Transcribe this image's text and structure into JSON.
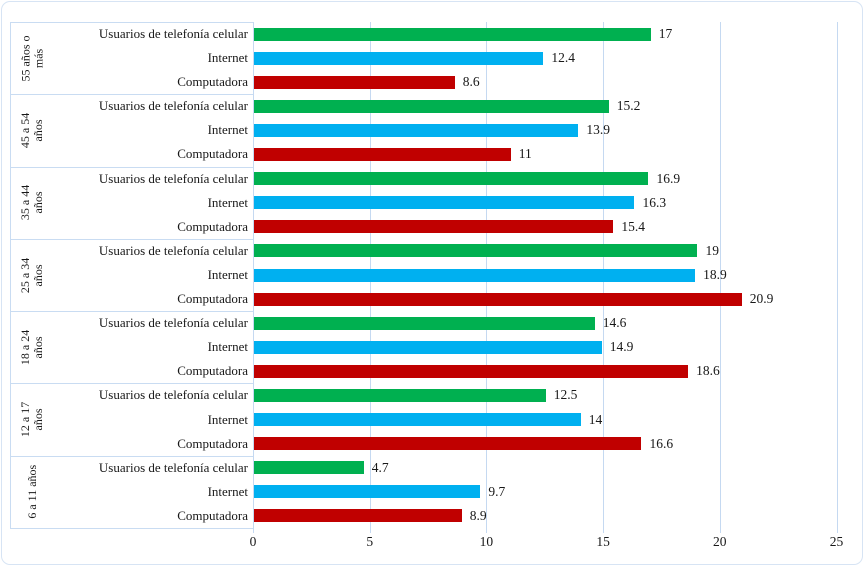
{
  "chart_data": {
    "type": "bar",
    "orientation": "horizontal",
    "title": "",
    "legend": "none",
    "grid": "vertical-gridlines-on",
    "series_labels": [
      "Usuarios de telefonía celular",
      "Internet",
      "Computadora"
    ],
    "series_colors": [
      "#00B050",
      "#00B0F0",
      "#C00000"
    ],
    "groups": [
      {
        "label": "55 años o más",
        "label_lines": [
          "55 años o",
          "más"
        ],
        "values": [
          17,
          12.4,
          8.6
        ]
      },
      {
        "label": "45 a 54 años",
        "label_lines": [
          "45 a 54",
          "años"
        ],
        "values": [
          15.2,
          13.9,
          11
        ]
      },
      {
        "label": "35 a 44 años",
        "label_lines": [
          "35 a 44",
          "años"
        ],
        "values": [
          16.9,
          16.3,
          15.4
        ]
      },
      {
        "label": "25 a 34 años",
        "label_lines": [
          "25 a 34",
          "años"
        ],
        "values": [
          19,
          18.9,
          20.9
        ]
      },
      {
        "label": "18 a 24 años",
        "label_lines": [
          "18 a 24",
          "años"
        ],
        "values": [
          14.6,
          14.9,
          18.6
        ]
      },
      {
        "label": "12 a 17 años",
        "label_lines": [
          "12 a 17",
          "años"
        ],
        "values": [
          12.5,
          14,
          16.6
        ]
      },
      {
        "label": "6 a 11 años",
        "label_lines": [
          "6 a 11 años"
        ],
        "values": [
          4.7,
          9.7,
          8.9
        ]
      }
    ],
    "x_axis": {
      "min": 0,
      "max": 25,
      "step": 5,
      "tick_labels": [
        "0",
        "5",
        "10",
        "15",
        "20",
        "25"
      ]
    },
    "colors": {
      "celular_green": "#00B050",
      "internet_blue": "#00B0F0",
      "computadora_red": "#C00000",
      "gridline": "#c5d9f1",
      "separator": "#c9dcf2",
      "border": "#d7e4f4",
      "text": "#181818"
    }
  }
}
